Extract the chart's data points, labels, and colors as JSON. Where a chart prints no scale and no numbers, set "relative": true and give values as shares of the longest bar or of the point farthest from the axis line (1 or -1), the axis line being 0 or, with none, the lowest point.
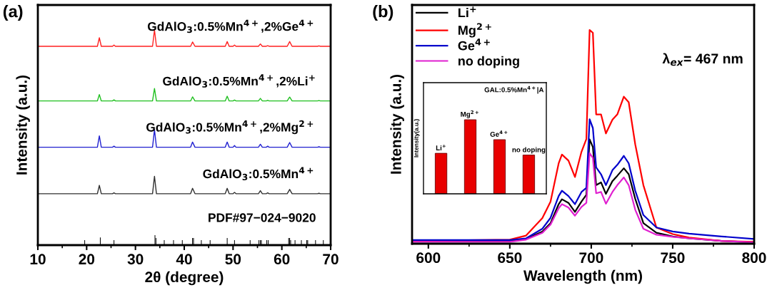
{
  "chart_data": [
    {
      "type": "line",
      "title": "(a)",
      "xlabel": "2θ (degree)",
      "ylabel": "Intensity (a.u.)",
      "relative": true,
      "xlim": [
        10,
        70
      ],
      "xticks": [
        10,
        20,
        30,
        40,
        50,
        60,
        70
      ],
      "tick_labels": "x",
      "grid": false,
      "legend": false,
      "x": [
        10,
        22.2,
        22.6,
        23.0,
        25.3,
        25.6,
        25.9,
        33.5,
        33.9,
        34.3,
        41.3,
        41.7,
        42.2,
        48.4,
        48.8,
        49.2,
        50.0,
        50.3,
        50.6,
        55.2,
        55.6,
        56.0,
        56.8,
        57.1,
        57.4,
        61.1,
        61.6,
        62.1,
        67.3,
        67.6,
        67.9,
        70
      ],
      "series": [
        {
          "name": "GdAlO$_{3}$:0.5%Mn$^{4+}$,2%Ge$^{4+}$",
          "color": "#ff2020",
          "values": [
            0.924,
            0.924,
            0.964,
            0.924,
            0.924,
            0.93,
            0.924,
            0.924,
            1.0,
            0.924,
            0.924,
            0.944,
            0.924,
            0.924,
            0.946,
            0.924,
            0.924,
            0.93,
            0.924,
            0.924,
            0.935,
            0.924,
            0.924,
            0.927,
            0.924,
            0.924,
            0.946,
            0.924,
            0.924,
            0.926,
            0.924,
            0.924
          ]
        },
        {
          "name": "GdAlO$_{3}$:0.5%Mn$^{4+}$,2%Li$^{+}$",
          "color": "#20c020",
          "values": [
            0.67,
            0.67,
            0.7,
            0.67,
            0.67,
            0.675,
            0.67,
            0.67,
            0.728,
            0.67,
            0.67,
            0.689,
            0.67,
            0.67,
            0.692,
            0.67,
            0.67,
            0.674,
            0.67,
            0.67,
            0.682,
            0.67,
            0.67,
            0.673,
            0.67,
            0.67,
            0.688,
            0.67,
            0.67,
            0.672,
            0.67,
            0.67
          ]
        },
        {
          "name": "GdAlO$_{3}$:0.5%Mn$^{4+}$,2%Mg$^{2+}$",
          "color": "#2020d0",
          "values": [
            0.455,
            0.455,
            0.508,
            0.455,
            0.455,
            0.46,
            0.455,
            0.455,
            0.537,
            0.455,
            0.455,
            0.479,
            0.455,
            0.455,
            0.479,
            0.455,
            0.455,
            0.463,
            0.455,
            0.455,
            0.469,
            0.455,
            0.455,
            0.46,
            0.455,
            0.455,
            0.477,
            0.455,
            0.455,
            0.457,
            0.455,
            0.455
          ]
        },
        {
          "name": "GdAlO$_{3}$:0.5%Mn$^{4+}$",
          "color": "#303030",
          "values": [
            0.239,
            0.239,
            0.278,
            0.239,
            0.239,
            0.243,
            0.239,
            0.239,
            0.32,
            0.239,
            0.239,
            0.264,
            0.239,
            0.239,
            0.264,
            0.239,
            0.239,
            0.245,
            0.239,
            0.239,
            0.253,
            0.239,
            0.239,
            0.243,
            0.239,
            0.239,
            0.259,
            0.239,
            0.239,
            0.241,
            0.239,
            0.239
          ]
        },
        {
          "name": "PDF#97−024−9020",
          "type": "bar",
          "color": "#000000",
          "x": [
            19.6,
            22.8,
            25.6,
            34.0,
            34.2,
            35.9,
            37.8,
            39.6,
            41.7,
            41.9,
            43.5,
            45.3,
            48.8,
            50.3,
            53.5,
            55.3,
            55.6,
            55.8,
            56.9,
            57.2,
            61.4,
            61.6,
            61.8,
            62.7,
            64.0,
            65.1,
            65.3,
            66.9,
            68.5
          ],
          "values": [
            0.023,
            0.036,
            0.023,
            0.046,
            0.033,
            0.023,
            0.023,
            0.023,
            0.033,
            0.033,
            0.023,
            0.023,
            0.033,
            0.023,
            0.023,
            0.023,
            0.023,
            0.023,
            0.023,
            0.023,
            0.033,
            0.033,
            0.023,
            0.023,
            0.023,
            0.023,
            0.023,
            0.023,
            0.023
          ]
        }
      ]
    },
    {
      "type": "line",
      "title": "(b)",
      "xlabel": "Wavelength (nm)",
      "ylabel": "Intensity (a.u.)",
      "relative": true,
      "xlim": [
        590,
        800
      ],
      "xticks": [
        600,
        650,
        700,
        750,
        800
      ],
      "tick_labels": "x",
      "grid": false,
      "legend": "top left",
      "annotations": [
        "λ$_{ex}$= 467 nm"
      ],
      "x": [
        590,
        650,
        660,
        670,
        675,
        680,
        682,
        686,
        690,
        694,
        697,
        699,
        701,
        703,
        706,
        709,
        713,
        716,
        720,
        723,
        727,
        732,
        740,
        750,
        760,
        780,
        800
      ],
      "series": [
        {
          "name": "Li$^{+}$",
          "color": "#000000",
          "values": [
            0.013,
            0.013,
            0.022,
            0.057,
            0.096,
            0.185,
            0.208,
            0.191,
            0.149,
            0.197,
            0.229,
            0.488,
            0.452,
            0.274,
            0.287,
            0.233,
            0.293,
            0.318,
            0.353,
            0.325,
            0.21,
            0.096,
            0.051,
            0.034,
            0.025,
            0.013,
            0.006
          ]
        },
        {
          "name": "Mg$^{2+}$",
          "color": "#ff0000",
          "values": [
            0.013,
            0.019,
            0.038,
            0.12,
            0.197,
            0.376,
            0.417,
            0.389,
            0.312,
            0.43,
            0.49,
            1.0,
            0.987,
            0.605,
            0.605,
            0.516,
            0.58,
            0.605,
            0.688,
            0.662,
            0.465,
            0.274,
            0.076,
            0.045,
            0.029,
            0.013,
            0.009
          ]
        },
        {
          "name": "Ge$^{4+}$",
          "color": "#0000cc",
          "values": [
            0.017,
            0.017,
            0.025,
            0.07,
            0.121,
            0.223,
            0.248,
            0.223,
            0.185,
            0.242,
            0.261,
            0.582,
            0.541,
            0.357,
            0.325,
            0.274,
            0.344,
            0.369,
            0.411,
            0.376,
            0.248,
            0.134,
            0.076,
            0.057,
            0.047,
            0.034,
            0.022
          ]
        },
        {
          "name": "no doping",
          "color": "#e020d0",
          "values": [
            0.009,
            0.009,
            0.019,
            0.051,
            0.089,
            0.166,
            0.185,
            0.169,
            0.131,
            0.172,
            0.191,
            0.424,
            0.401,
            0.236,
            0.242,
            0.187,
            0.242,
            0.274,
            0.31,
            0.274,
            0.159,
            0.07,
            0.042,
            0.032,
            0.025,
            0.013,
            0.006
          ]
        }
      ]
    },
    {
      "type": "bar",
      "title": "GAL:0.5%Mn$^{4+}$|A",
      "ylabel": "Intensity(a.u.)",
      "relative": true,
      "tick_labels": false,
      "grid": false,
      "legend": false,
      "categories": [
        "Li$^{+}$",
        "Mg$^{2+}$",
        "Ge$^{4+}$",
        "no doping"
      ],
      "values": [
        0.547,
        1.0,
        0.731,
        0.523
      ],
      "color": "#e80000"
    }
  ]
}
